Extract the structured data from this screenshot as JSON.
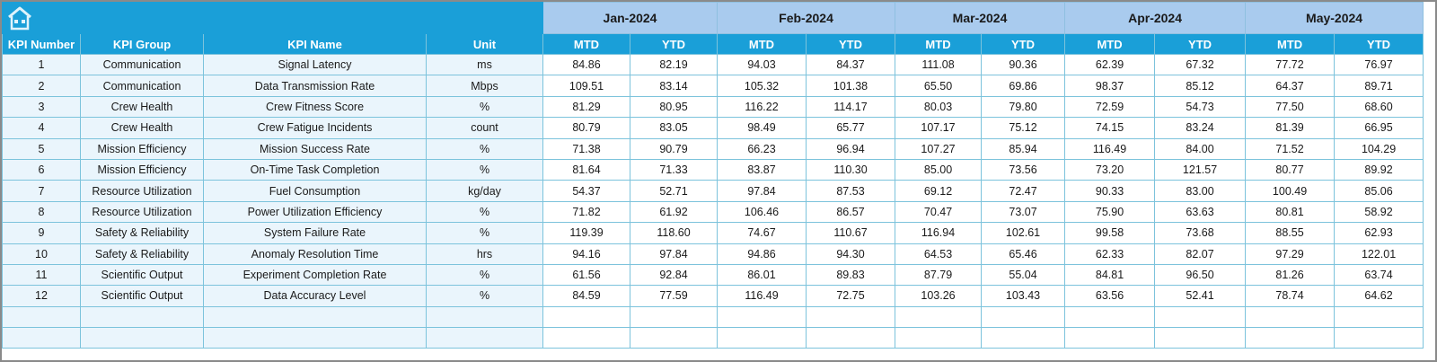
{
  "colors": {
    "header_blue": "#1a9fd8",
    "month_blue": "#a9cbee",
    "light_cell": "#eaf5fc",
    "border": "#7cc3dc"
  },
  "toolbar": {
    "home_icon": "home-icon"
  },
  "months": [
    "Jan-2024",
    "Feb-2024",
    "Mar-2024",
    "Apr-2024",
    "May-2024"
  ],
  "columns": {
    "kpi_number": "KPI Number",
    "kpi_group": "KPI Group",
    "kpi_name": "KPI Name",
    "unit": "Unit",
    "mtd": "MTD",
    "ytd": "YTD"
  },
  "rows": [
    {
      "num": "1",
      "group": "Communication",
      "name": "Signal Latency",
      "unit": "ms",
      "values": [
        "84.86",
        "82.19",
        "94.03",
        "84.37",
        "111.08",
        "90.36",
        "62.39",
        "67.32",
        "77.72",
        "76.97"
      ]
    },
    {
      "num": "2",
      "group": "Communication",
      "name": "Data Transmission Rate",
      "unit": "Mbps",
      "values": [
        "109.51",
        "83.14",
        "105.32",
        "101.38",
        "65.50",
        "69.86",
        "98.37",
        "85.12",
        "64.37",
        "89.71"
      ]
    },
    {
      "num": "3",
      "group": "Crew Health",
      "name": "Crew Fitness Score",
      "unit": "%",
      "values": [
        "81.29",
        "80.95",
        "116.22",
        "114.17",
        "80.03",
        "79.80",
        "72.59",
        "54.73",
        "77.50",
        "68.60"
      ]
    },
    {
      "num": "4",
      "group": "Crew Health",
      "name": "Crew Fatigue Incidents",
      "unit": "count",
      "values": [
        "80.79",
        "83.05",
        "98.49",
        "65.77",
        "107.17",
        "75.12",
        "74.15",
        "83.24",
        "81.39",
        "66.95"
      ]
    },
    {
      "num": "5",
      "group": "Mission Efficiency",
      "name": "Mission Success Rate",
      "unit": "%",
      "values": [
        "71.38",
        "90.79",
        "66.23",
        "96.94",
        "107.27",
        "85.94",
        "116.49",
        "84.00",
        "71.52",
        "104.29"
      ]
    },
    {
      "num": "6",
      "group": "Mission Efficiency",
      "name": "On-Time Task Completion",
      "unit": "%",
      "values": [
        "81.64",
        "71.33",
        "83.87",
        "110.30",
        "85.00",
        "73.56",
        "73.20",
        "121.57",
        "80.77",
        "89.92"
      ]
    },
    {
      "num": "7",
      "group": "Resource Utilization",
      "name": "Fuel Consumption",
      "unit": "kg/day",
      "values": [
        "54.37",
        "52.71",
        "97.84",
        "87.53",
        "69.12",
        "72.47",
        "90.33",
        "83.00",
        "100.49",
        "85.06"
      ]
    },
    {
      "num": "8",
      "group": "Resource Utilization",
      "name": "Power Utilization Efficiency",
      "unit": "%",
      "values": [
        "71.82",
        "61.92",
        "106.46",
        "86.57",
        "70.47",
        "73.07",
        "75.90",
        "63.63",
        "80.81",
        "58.92"
      ]
    },
    {
      "num": "9",
      "group": "Safety & Reliability",
      "name": "System Failure Rate",
      "unit": "%",
      "values": [
        "119.39",
        "118.60",
        "74.67",
        "110.67",
        "116.94",
        "102.61",
        "99.58",
        "73.68",
        "88.55",
        "62.93"
      ]
    },
    {
      "num": "10",
      "group": "Safety & Reliability",
      "name": "Anomaly Resolution Time",
      "unit": "hrs",
      "values": [
        "94.16",
        "97.84",
        "94.86",
        "94.30",
        "64.53",
        "65.46",
        "62.33",
        "82.07",
        "97.29",
        "122.01"
      ]
    },
    {
      "num": "11",
      "group": "Scientific Output",
      "name": "Experiment Completion Rate",
      "unit": "%",
      "values": [
        "61.56",
        "92.84",
        "86.01",
        "89.83",
        "87.79",
        "55.04",
        "84.81",
        "96.50",
        "81.26",
        "63.74"
      ]
    },
    {
      "num": "12",
      "group": "Scientific Output",
      "name": "Data Accuracy Level",
      "unit": "%",
      "values": [
        "84.59",
        "77.59",
        "116.49",
        "72.75",
        "103.26",
        "103.43",
        "63.56",
        "52.41",
        "78.74",
        "64.62"
      ]
    }
  ],
  "empty_rows": 2
}
